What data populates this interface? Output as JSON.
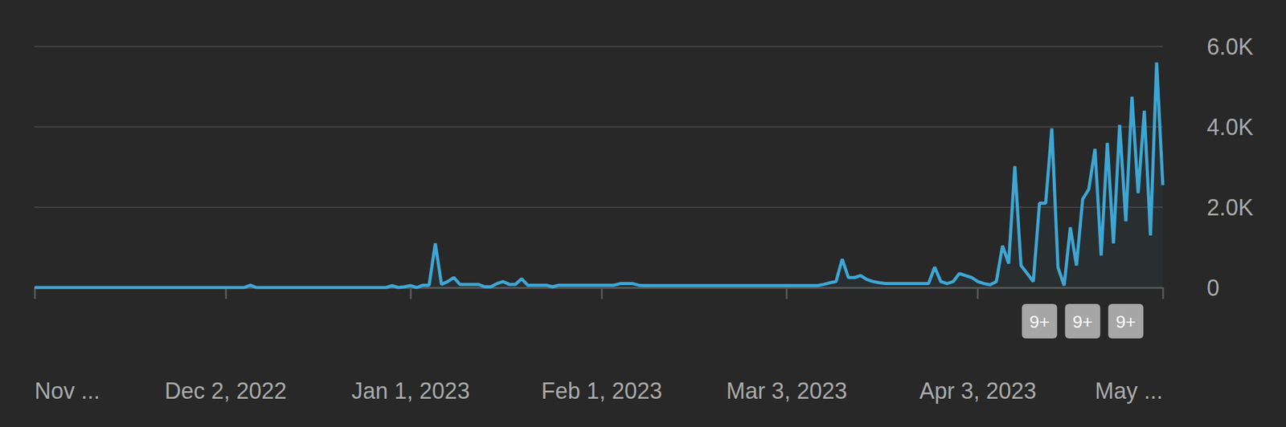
{
  "chart_data": {
    "type": "area",
    "color": "#3ea6d3",
    "grid": true,
    "categories": [
      "Nov ...",
      null,
      null,
      null,
      null,
      null,
      null,
      null,
      null,
      null,
      null,
      null,
      null,
      null,
      null,
      null,
      null,
      null,
      null,
      null,
      null,
      null,
      null,
      null,
      null,
      null,
      null,
      null,
      null,
      null,
      null,
      "Dec 2, 2022",
      null,
      null,
      null,
      null,
      null,
      null,
      null,
      null,
      null,
      null,
      null,
      null,
      null,
      null,
      null,
      null,
      null,
      null,
      null,
      null,
      null,
      null,
      null,
      null,
      null,
      null,
      null,
      null,
      null,
      "Jan 1, 2023",
      null,
      null,
      null,
      null,
      null,
      null,
      null,
      null,
      null,
      null,
      null,
      null,
      null,
      null,
      null,
      null,
      null,
      null,
      null,
      null,
      null,
      null,
      null,
      null,
      null,
      null,
      null,
      null,
      null,
      null,
      "Feb 1, 2023",
      null,
      null,
      null,
      null,
      null,
      null,
      null,
      null,
      null,
      null,
      null,
      null,
      null,
      null,
      null,
      null,
      null,
      null,
      null,
      null,
      null,
      null,
      null,
      null,
      null,
      null,
      null,
      null,
      null,
      "Mar 3, 2023",
      null,
      null,
      null,
      null,
      null,
      null,
      null,
      null,
      null,
      null,
      null,
      null,
      null,
      null,
      null,
      null,
      null,
      null,
      null,
      null,
      null,
      null,
      null,
      null,
      null,
      null,
      null,
      null,
      null,
      null,
      "Apr 3, 2023",
      null,
      null,
      null,
      null,
      null,
      null,
      null,
      null,
      null,
      null,
      null,
      null,
      null,
      null,
      null,
      null,
      null,
      null,
      null,
      null,
      null,
      null,
      null,
      null,
      null,
      null,
      null,
      null,
      null,
      "May ..."
    ],
    "values": [
      0,
      0,
      0,
      0,
      0,
      0,
      0,
      0,
      0,
      0,
      0,
      0,
      0,
      0,
      0,
      0,
      0,
      0,
      0,
      0,
      0,
      0,
      0,
      0,
      0,
      0,
      0,
      0,
      0,
      0,
      0,
      0,
      0,
      0,
      0,
      60,
      0,
      0,
      0,
      0,
      0,
      0,
      0,
      0,
      0,
      0,
      0,
      0,
      0,
      0,
      0,
      0,
      0,
      0,
      0,
      0,
      0,
      0,
      50,
      0,
      20,
      50,
      0,
      60,
      60,
      1100,
      80,
      150,
      250,
      80,
      80,
      80,
      80,
      20,
      20,
      100,
      150,
      80,
      80,
      220,
      60,
      60,
      60,
      60,
      20,
      60,
      60,
      60,
      60,
      60,
      60,
      60,
      60,
      60,
      60,
      100,
      100,
      100,
      60,
      50,
      50,
      50,
      50,
      50,
      50,
      50,
      50,
      50,
      50,
      50,
      50,
      50,
      50,
      50,
      50,
      50,
      50,
      50,
      50,
      50,
      50,
      50,
      50,
      50,
      50,
      50,
      50,
      50,
      80,
      120,
      150,
      710,
      250,
      250,
      300,
      200,
      150,
      120,
      100,
      100,
      100,
      100,
      100,
      100,
      100,
      100,
      510,
      150,
      100,
      150,
      350,
      300,
      250,
      150,
      100,
      70,
      150,
      1040,
      600,
      3020,
      550,
      350,
      150,
      2100,
      2100,
      3960,
      500,
      50,
      1500,
      550,
      2200,
      2450,
      3450,
      800,
      3600,
      1100,
      4050,
      1650,
      4750,
      2350,
      4400,
      1300,
      5600,
      2550
    ],
    "ylim": [
      0,
      6000
    ],
    "yticks": [
      0,
      {
        "value": 2000,
        "label": "2.0K"
      },
      {
        "value": 4000,
        "label": "4.0K"
      },
      {
        "value": 6000,
        "label": "6.0K"
      }
    ],
    "annotations": [
      {
        "text": "9+",
        "index": 163
      },
      {
        "text": "9+",
        "index": 170
      },
      {
        "text": "9+",
        "index": 177
      }
    ]
  }
}
